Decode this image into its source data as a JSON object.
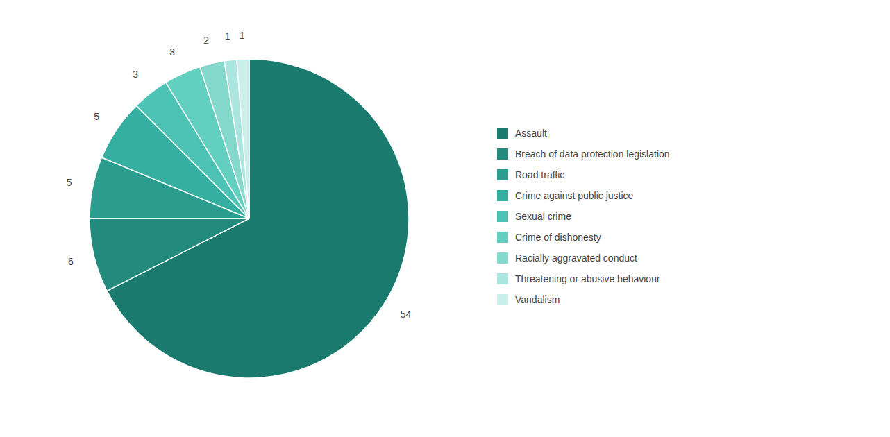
{
  "chart_data": {
    "type": "pie",
    "categories": [
      "Assault",
      "Breach of data protection legislation",
      "Road traffic",
      "Crime against public justice",
      "Sexual crime",
      "Crime of dishonesty",
      "Racially aggravated conduct",
      "Threatening or abusive behaviour",
      "Vandalism"
    ],
    "values": [
      54,
      6,
      5,
      5,
      3,
      3,
      2,
      1,
      1
    ],
    "colors": [
      "#1a7a6e",
      "#228b7e",
      "#2a9d8f",
      "#35afa0",
      "#4dc3b5",
      "#62cfc0",
      "#85d8cc",
      "#aae5df",
      "#caeee9"
    ],
    "data_labels": true,
    "legend": "right"
  }
}
